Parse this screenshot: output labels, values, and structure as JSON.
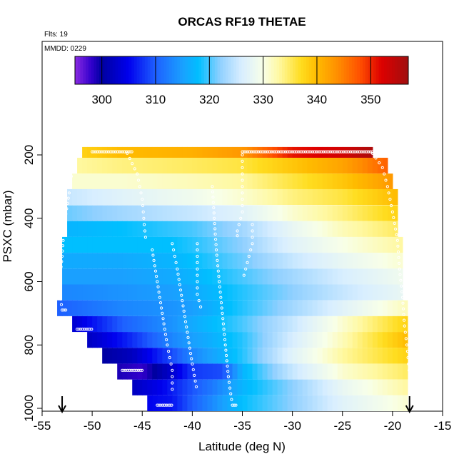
{
  "chart_data": {
    "type": "heatmap",
    "title": "ORCAS RF19 THETAE",
    "annotations": {
      "flights": "Flts: 19",
      "date": "MMDD: 0229"
    },
    "xlabel": "Latitude (deg N)",
    "ylabel": "PSXC (mbar)",
    "xlim": [
      -55,
      -15
    ],
    "ylim": [
      1000,
      100
    ],
    "x_ticks": [
      -55,
      -50,
      -45,
      -40,
      -35,
      -30,
      -25,
      -20,
      -15
    ],
    "x_tick_labels": [
      "-55",
      "-50",
      "-45",
      "-40",
      "-35",
      "-30",
      "-25",
      "-20",
      "-15"
    ],
    "y_ticks": [
      200,
      400,
      600,
      800,
      1000
    ],
    "y_tick_labels": [
      "200",
      "400",
      "600",
      "800",
      "1000"
    ],
    "colorbar": {
      "range": [
        295,
        357
      ],
      "ticks": [
        300,
        310,
        320,
        330,
        340,
        350
      ],
      "tick_labels": [
        "300",
        "310",
        "320",
        "330",
        "340",
        "350"
      ],
      "colors": [
        [
          295,
          "#8a2be2"
        ],
        [
          298,
          "#3300cc"
        ],
        [
          300,
          "#0000a0"
        ],
        [
          305,
          "#0000ee"
        ],
        [
          310,
          "#1e60ff"
        ],
        [
          315,
          "#1aa0ff"
        ],
        [
          318,
          "#00bfff"
        ],
        [
          322,
          "#90d0ff"
        ],
        [
          326,
          "#d8eeff"
        ],
        [
          330,
          "#f8ffe8"
        ],
        [
          333,
          "#fff8a0"
        ],
        [
          337,
          "#ffdd20"
        ],
        [
          340,
          "#ffbb00"
        ],
        [
          344,
          "#ff8c00"
        ],
        [
          348,
          "#ff5000"
        ],
        [
          352,
          "#dd0000"
        ],
        [
          357,
          "#a01010"
        ]
      ]
    },
    "pressure_levels": [
      187,
      234,
      284,
      333,
      384,
      434,
      484,
      534,
      584,
      634,
      684,
      734,
      784,
      834,
      884,
      934,
      984
    ],
    "level_extent": [
      [
        -51,
        -22
      ],
      [
        -51.5,
        -20.5
      ],
      [
        -52,
        -20
      ],
      [
        -52.5,
        -19.5
      ],
      [
        -52.5,
        -19.5
      ],
      [
        -52.5,
        -19.5
      ],
      [
        -53,
        -19
      ],
      [
        -53,
        -19
      ],
      [
        -53,
        -19
      ],
      [
        -53,
        -19
      ],
      [
        -53.5,
        -18.5
      ],
      [
        -52,
        -18.5
      ],
      [
        -50.5,
        -18.5
      ],
      [
        -49,
        -18.5
      ],
      [
        -47.5,
        -18.5
      ],
      [
        -46,
        -18.5
      ],
      [
        -44.5,
        -18.5
      ]
    ],
    "level_profiles": [
      [
        [
          -51,
          338
        ],
        [
          -47,
          340
        ],
        [
          -40,
          341
        ],
        [
          -35,
          343
        ],
        [
          -30,
          351
        ],
        [
          -25,
          353
        ],
        [
          -22,
          356
        ]
      ],
      [
        [
          -51.5,
          333
        ],
        [
          -47,
          334
        ],
        [
          -40,
          335
        ],
        [
          -35,
          336
        ],
        [
          -30,
          339
        ],
        [
          -25,
          342
        ],
        [
          -20.5,
          347
        ]
      ],
      [
        [
          -52,
          331
        ],
        [
          -47,
          331
        ],
        [
          -40,
          332
        ],
        [
          -35,
          333
        ],
        [
          -30,
          336
        ],
        [
          -25,
          339
        ],
        [
          -20,
          343
        ]
      ],
      [
        [
          -52.5,
          325
        ],
        [
          -47,
          327
        ],
        [
          -40,
          329
        ],
        [
          -35,
          331
        ],
        [
          -30,
          334
        ],
        [
          -25,
          336
        ],
        [
          -19.5,
          340
        ]
      ],
      [
        [
          -52.5,
          321
        ],
        [
          -47,
          323
        ],
        [
          -40,
          325
        ],
        [
          -35,
          327
        ],
        [
          -30,
          331
        ],
        [
          -25,
          334
        ],
        [
          -19.5,
          338
        ]
      ],
      [
        [
          -52.5,
          317
        ],
        [
          -47,
          318
        ],
        [
          -40,
          320
        ],
        [
          -35,
          323
        ],
        [
          -30,
          328
        ],
        [
          -25,
          332
        ],
        [
          -19.5,
          335
        ]
      ],
      [
        [
          -53,
          318
        ],
        [
          -47,
          318
        ],
        [
          -42,
          318
        ],
        [
          -40,
          319
        ],
        [
          -35,
          322
        ],
        [
          -30,
          327
        ],
        [
          -25,
          330
        ],
        [
          -19,
          333
        ]
      ],
      [
        [
          -53,
          316
        ],
        [
          -47,
          316
        ],
        [
          -42,
          317
        ],
        [
          -40,
          318
        ],
        [
          -35,
          321
        ],
        [
          -30,
          325
        ],
        [
          -25,
          328
        ],
        [
          -19,
          331
        ]
      ],
      [
        [
          -53,
          315
        ],
        [
          -47,
          315
        ],
        [
          -42,
          316
        ],
        [
          -40,
          317
        ],
        [
          -35,
          320
        ],
        [
          -30,
          323
        ],
        [
          -25,
          326
        ],
        [
          -19,
          329
        ]
      ],
      [
        [
          -53,
          313
        ],
        [
          -47,
          314
        ],
        [
          -42,
          315
        ],
        [
          -40,
          316
        ],
        [
          -35,
          319
        ],
        [
          -30,
          322
        ],
        [
          -25,
          325
        ],
        [
          -19,
          328
        ]
      ],
      [
        [
          -53.5,
          310
        ],
        [
          -47,
          313
        ],
        [
          -42,
          314
        ],
        [
          -40,
          315
        ],
        [
          -35,
          319
        ],
        [
          -30,
          323
        ],
        [
          -25,
          327
        ],
        [
          -18.5,
          332
        ]
      ],
      [
        [
          -52,
          303
        ],
        [
          -47,
          310
        ],
        [
          -42,
          314
        ],
        [
          -40,
          316
        ],
        [
          -35,
          320
        ],
        [
          -30,
          325
        ],
        [
          -25,
          331
        ],
        [
          -18.5,
          338
        ]
      ],
      [
        [
          -50.5,
          302
        ],
        [
          -47,
          306
        ],
        [
          -42,
          313
        ],
        [
          -40,
          315
        ],
        [
          -35,
          319
        ],
        [
          -30,
          326
        ],
        [
          -25,
          332
        ],
        [
          -18.5,
          340
        ]
      ],
      [
        [
          -49,
          300
        ],
        [
          -46,
          302
        ],
        [
          -42,
          309
        ],
        [
          -40,
          313
        ],
        [
          -35,
          319
        ],
        [
          -30,
          327
        ],
        [
          -25,
          333
        ],
        [
          -18.5,
          338
        ]
      ],
      [
        [
          -47.5,
          299
        ],
        [
          -45,
          298
        ],
        [
          -42,
          303
        ],
        [
          -40,
          308
        ],
        [
          -37,
          309
        ],
        [
          -35,
          317
        ],
        [
          -30,
          325
        ],
        [
          -25,
          331
        ],
        [
          -18.5,
          335
        ]
      ],
      [
        [
          -46,
          302
        ],
        [
          -43,
          305
        ],
        [
          -41,
          308
        ],
        [
          -38,
          312
        ],
        [
          -35,
          317
        ],
        [
          -30,
          322
        ],
        [
          -25,
          328
        ],
        [
          -18.5,
          333
        ]
      ],
      [
        [
          -44.5,
          305
        ],
        [
          -42,
          306
        ],
        [
          -40,
          310
        ],
        [
          -37,
          315
        ],
        [
          -35,
          318
        ],
        [
          -30,
          322
        ],
        [
          -25,
          327
        ],
        [
          -18.5,
          331
        ]
      ]
    ],
    "flight_track": {
      "level_legs": [
        [
          190,
          -50,
          -46
        ],
        [
          190,
          -35,
          -22
        ],
        [
          690,
          -53,
          -52.5
        ],
        [
          750,
          -51.5,
          -50
        ],
        [
          880,
          -47,
          -45
        ],
        [
          990,
          -43.5,
          -42
        ],
        [
          990,
          -36,
          -35.5
        ]
      ],
      "profile_legs": [
        [
          [
            -46.5,
            195
          ],
          [
            -45.5,
            260
          ],
          [
            -45,
            340
          ],
          [
            -44.8,
            420
          ],
          [
            -44.6,
            480
          ]
        ],
        [
          [
            -44,
            500
          ],
          [
            -43.5,
            600
          ],
          [
            -43,
            700
          ],
          [
            -42.5,
            800
          ],
          [
            -42,
            880
          ],
          [
            -42,
            960
          ]
        ],
        [
          [
            -42,
            480
          ],
          [
            -41.5,
            560
          ],
          [
            -41,
            660
          ],
          [
            -40.5,
            760
          ],
          [
            -40,
            860
          ],
          [
            -39.5,
            950
          ]
        ],
        [
          [
            -39.5,
            480
          ],
          [
            -39.5,
            560
          ],
          [
            -39.5,
            640
          ],
          [
            -39,
            700
          ]
        ],
        [
          [
            -38,
            300
          ],
          [
            -37.8,
            400
          ],
          [
            -37.6,
            500
          ],
          [
            -37.3,
            600
          ],
          [
            -37,
            700
          ],
          [
            -36.7,
            800
          ],
          [
            -36.4,
            900
          ],
          [
            -36,
            990
          ]
        ],
        [
          [
            -35,
            200
          ],
          [
            -35,
            260
          ],
          [
            -35,
            320
          ],
          [
            -35,
            380
          ],
          [
            -35.5,
            440
          ],
          [
            -35.5,
            470
          ]
        ],
        [
          [
            -34,
            420
          ],
          [
            -34,
            480
          ],
          [
            -34.5,
            540
          ],
          [
            -35,
            600
          ]
        ],
        [
          [
            -52,
            250
          ],
          [
            -52.3,
            320
          ],
          [
            -52.8,
            420
          ],
          [
            -53,
            520
          ],
          [
            -53.3,
            620
          ],
          [
            -53,
            690
          ]
        ],
        [
          [
            -22,
            195
          ],
          [
            -21,
            240
          ],
          [
            -20.5,
            300
          ],
          [
            -20,
            380
          ],
          [
            -19.5,
            470
          ],
          [
            -19.3,
            560
          ],
          [
            -19,
            650
          ],
          [
            -18.8,
            740
          ],
          [
            -18.5,
            820
          ],
          [
            -18.3,
            900
          ],
          [
            -18.2,
            990
          ]
        ]
      ]
    },
    "arrows": [
      {
        "x": -53
      },
      {
        "x": -18.3
      }
    ]
  }
}
